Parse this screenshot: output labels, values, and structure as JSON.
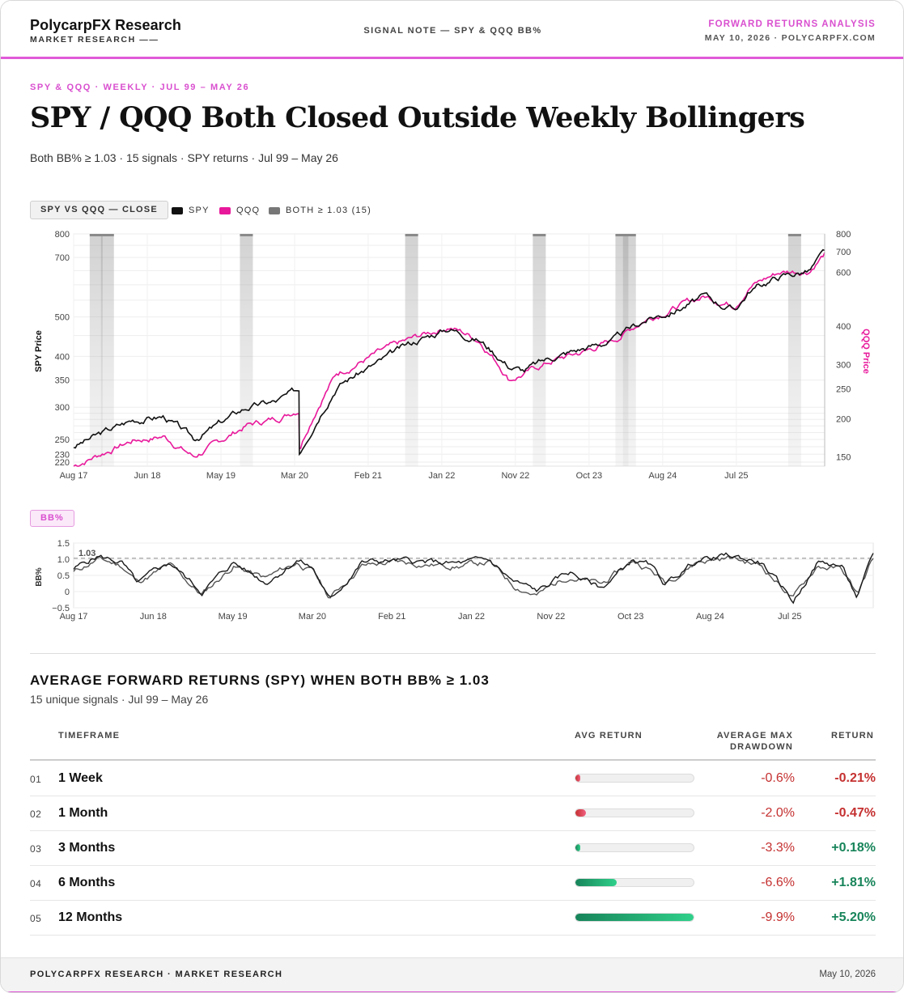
{
  "header": {
    "brand": "PolycarpFX Research",
    "brand_sub": "MARKET RESEARCH ——",
    "center": "SIGNAL NOTE — SPY & QQQ BB%",
    "right_title": "FORWARD RETURNS ANALYSIS",
    "right_sub": "MAY 10, 2026 · POLYCARPFX.COM"
  },
  "kicker": "SPY & QQQ · WEEKLY · JUL 99 – MAY 26",
  "title": "SPY / QQQ Both Closed Outside Weekly Bollingers",
  "subtitle": "Both BB% ≥ 1.03 · 15 signals · SPY returns · Jul 99 – May 26",
  "colors": {
    "spy": "#111111",
    "qqq": "#e8189b",
    "band": "#8a8a8a",
    "accent": "#d94fcf",
    "neg": "#c53030",
    "pos": "#17845a"
  },
  "price_chart": {
    "chip": "SPY VS QQQ — CLOSE",
    "legend": {
      "spy": "SPY",
      "qqq": "QQQ",
      "both": "BOTH ≥ 1.03 (15)"
    }
  },
  "bb_chart": {
    "chip": "BB%",
    "threshold_label": "1.03"
  },
  "chart_data": [
    {
      "type": "line",
      "title": "SPY VS QQQ — CLOSE",
      "ylabel": "SPY Price",
      "y2label": "QQQ Price",
      "scale": "log",
      "x_ticks": [
        "Aug 17",
        "Jun 18",
        "May 19",
        "Mar 20",
        "Feb 21",
        "Jan 22",
        "Nov 22",
        "Oct 23",
        "Aug 24",
        "Jul 25"
      ],
      "y_ticks": [
        "800",
        "700",
        "500",
        "400",
        "350",
        "300",
        "250",
        "230",
        "220"
      ],
      "y2_ticks": [
        "800",
        "700",
        "600",
        "400",
        "300",
        "250",
        "200",
        "150"
      ],
      "ylim": [
        215,
        800
      ],
      "y2lim": [
        140,
        800
      ],
      "series": [
        {
          "name": "SPY",
          "axis": "left",
          "x": [
            0,
            0.04,
            0.08,
            0.12,
            0.16,
            0.19,
            0.23,
            0.27,
            0.3,
            0.3,
            0.35,
            0.41,
            0.46,
            0.5,
            0.54,
            0.58,
            0.6,
            0.64,
            0.68,
            0.72,
            0.76,
            0.8,
            0.84,
            0.88,
            0.9,
            0.94,
            0.98,
            1.0
          ],
          "y": [
            240,
            260,
            280,
            285,
            250,
            270,
            300,
            310,
            330,
            230,
            340,
            390,
            440,
            470,
            440,
            380,
            370,
            400,
            420,
            440,
            490,
            520,
            560,
            520,
            580,
            630,
            650,
            720
          ]
        },
        {
          "name": "QQQ",
          "axis": "right",
          "x": [
            0,
            0.04,
            0.08,
            0.12,
            0.16,
            0.19,
            0.23,
            0.27,
            0.3,
            0.3,
            0.35,
            0.41,
            0.46,
            0.5,
            0.54,
            0.58,
            0.6,
            0.64,
            0.68,
            0.72,
            0.76,
            0.8,
            0.84,
            0.88,
            0.9,
            0.94,
            0.98,
            1.0
          ],
          "y": [
            140,
            155,
            170,
            175,
            150,
            165,
            190,
            200,
            215,
            160,
            280,
            330,
            370,
            400,
            360,
            270,
            280,
            310,
            330,
            360,
            420,
            460,
            500,
            470,
            540,
            600,
            610,
            690
          ]
        }
      ],
      "signal_bands_x": [
        0.03,
        0.045,
        0.23,
        0.45,
        0.62,
        0.73,
        0.74,
        0.96
      ]
    },
    {
      "type": "line",
      "title": "BB%",
      "ylabel": "BB%",
      "x_ticks": [
        "Aug 17",
        "Jun 18",
        "May 19",
        "Mar 20",
        "Feb 21",
        "Jan 22",
        "Nov 22",
        "Oct 23",
        "Aug 24",
        "Jul 25"
      ],
      "y_ticks": [
        "1.5",
        "1.0",
        "0.5",
        "0",
        "−0.5"
      ],
      "ylim": [
        -0.5,
        1.5
      ],
      "threshold": 1.03,
      "series": [
        {
          "name": "SPY",
          "x": [
            0,
            0.03,
            0.06,
            0.08,
            0.12,
            0.16,
            0.2,
            0.24,
            0.28,
            0.3,
            0.32,
            0.36,
            0.4,
            0.44,
            0.48,
            0.52,
            0.55,
            0.58,
            0.62,
            0.66,
            0.7,
            0.72,
            0.74,
            0.78,
            0.82,
            0.86,
            0.9,
            0.93,
            0.96,
            0.98,
            1.0
          ],
          "y": [
            0.7,
            1.1,
            0.9,
            0.2,
            0.9,
            0.0,
            0.9,
            0.3,
            1.0,
            0.7,
            -0.3,
            0.9,
            0.95,
            0.9,
            0.85,
            0.95,
            0.3,
            0.0,
            0.6,
            0.1,
            1.0,
            0.8,
            0.2,
            1.0,
            1.1,
            0.9,
            -0.3,
            0.9,
            0.8,
            -0.2,
            1.1
          ]
        },
        {
          "name": "QQQ",
          "x": [
            0,
            0.03,
            0.06,
            0.08,
            0.12,
            0.16,
            0.2,
            0.24,
            0.28,
            0.3,
            0.32,
            0.36,
            0.4,
            0.44,
            0.48,
            0.52,
            0.55,
            0.58,
            0.62,
            0.66,
            0.7,
            0.72,
            0.74,
            0.78,
            0.82,
            0.86,
            0.9,
            0.93,
            0.96,
            0.98,
            1.0
          ],
          "y": [
            0.6,
            1.0,
            0.8,
            0.3,
            0.8,
            -0.1,
            0.8,
            0.4,
            0.9,
            0.6,
            -0.2,
            0.8,
            0.9,
            0.85,
            0.8,
            0.9,
            0.2,
            -0.1,
            0.5,
            0.2,
            0.95,
            0.7,
            0.3,
            0.95,
            1.05,
            0.8,
            -0.2,
            0.8,
            0.7,
            -0.1,
            1.05
          ]
        }
      ]
    },
    {
      "type": "table",
      "title": "AVERAGE FORWARD RETURNS (SPY) WHEN BOTH BB% ≥ 1.03",
      "subtitle": "15 unique signals · Jul 99 – May 26",
      "columns": [
        "TIMEFRAME",
        "AVG RETURN",
        "AVERAGE MAX DRAWDOWN",
        "RETURN"
      ],
      "rows": [
        {
          "num": "01",
          "timeframe": "1 Week",
          "bar_value": -0.21,
          "drawdown": "-0.6%",
          "return": "-0.21%"
        },
        {
          "num": "02",
          "timeframe": "1 Month",
          "bar_value": -0.47,
          "drawdown": "-2.0%",
          "return": "-0.47%"
        },
        {
          "num": "03",
          "timeframe": "3 Months",
          "bar_value": 0.18,
          "drawdown": "-3.3%",
          "return": "+0.18%"
        },
        {
          "num": "04",
          "timeframe": "6 Months",
          "bar_value": 1.81,
          "drawdown": "-6.6%",
          "return": "+1.81%"
        },
        {
          "num": "05",
          "timeframe": "12 Months",
          "bar_value": 5.2,
          "drawdown": "-9.9%",
          "return": "+5.20%"
        }
      ]
    }
  ],
  "table": {
    "th_timeframe": "TIMEFRAME",
    "th_avg": "AVG RETURN",
    "th_dd1": "AVERAGE MAX",
    "th_dd2": "DRAWDOWN",
    "th_ret": "RETURN"
  },
  "footer": {
    "left": "POLYCARPFX RESEARCH · MARKET RESEARCH",
    "right": "May 10, 2026"
  }
}
